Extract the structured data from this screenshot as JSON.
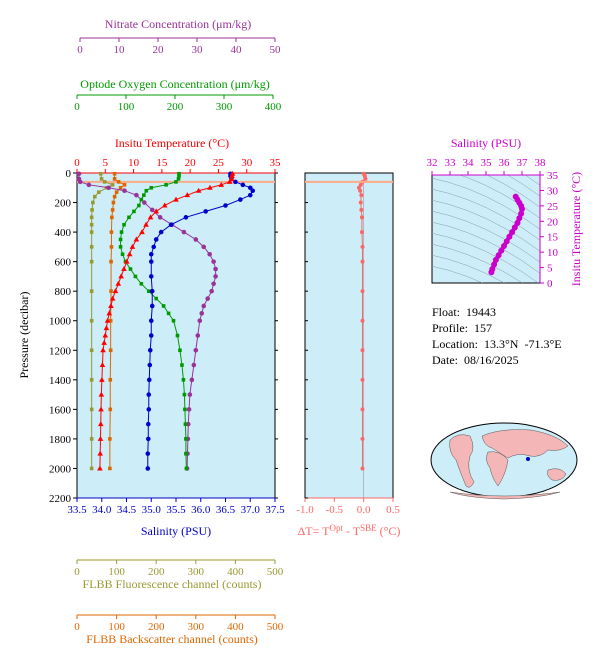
{
  "info": {
    "float_label": "Float:",
    "float_value": "19443",
    "profile_label": "Profile:",
    "profile_value": "157",
    "location_label": "Location:",
    "location_value": "13.3°N  -71.3°E",
    "date_label": "Date:",
    "date_value": "08/16/2025"
  },
  "colors": {
    "temperature": "#ff0000",
    "salinity": "#0000cc",
    "oxygen": "#009900",
    "nitrate": "#993399",
    "fluorescence": "#999933",
    "backscatter": "#dd6600",
    "delta_t": "#ff6666",
    "ts_salinity": "#cc00cc",
    "panel_bg": "#cdeef8"
  },
  "chart_data": [
    {
      "type": "line",
      "ylabel": "Pressure (decibar)",
      "ylim": [
        2200,
        0
      ],
      "yticks": [
        0,
        200,
        400,
        600,
        800,
        1000,
        1200,
        1400,
        1600,
        1800,
        2000,
        2200
      ],
      "axes": {
        "nitrate": {
          "label": "Nitrate Concentration (μm/kg)",
          "lim": [
            0,
            50
          ],
          "ticks": [
            0,
            10,
            20,
            30,
            40,
            50
          ]
        },
        "oxygen": {
          "label": "Optode Oxygen Concentration (μm/kg)",
          "lim": [
            0,
            400
          ],
          "ticks": [
            0,
            100,
            200,
            300,
            400
          ]
        },
        "temperature": {
          "label": "Insitu Temperature (°C)",
          "lim": [
            0,
            35
          ],
          "ticks": [
            0,
            5,
            10,
            15,
            20,
            25,
            30,
            35
          ]
        },
        "salinity": {
          "label": "Salinity (PSU)",
          "lim": [
            33.5,
            37.5
          ],
          "ticks": [
            "33.5",
            "34.0",
            "34.5",
            "35.0",
            "35.5",
            "36.0",
            "36.5",
            "37.0",
            "37.5"
          ]
        },
        "fluorescence": {
          "label": "FLBB Fluorescence channel (counts)",
          "lim": [
            0,
            500
          ],
          "ticks": [
            0,
            100,
            200,
            300,
            400,
            500
          ]
        },
        "backscatter": {
          "label": "FLBB Backscatter channel (counts)",
          "lim": [
            0,
            500
          ],
          "ticks": [
            0,
            100,
            200,
            300,
            400,
            500
          ]
        }
      },
      "mixed_layer_pressure": 60,
      "series": {
        "temperature": [
          [
            27.5,
            5
          ],
          [
            27.4,
            20
          ],
          [
            27.3,
            40
          ],
          [
            27.0,
            60
          ],
          [
            25.5,
            80
          ],
          [
            23.5,
            100
          ],
          [
            21.5,
            120
          ],
          [
            19.5,
            150
          ],
          [
            17.5,
            180
          ],
          [
            15.5,
            220
          ],
          [
            14,
            260
          ],
          [
            13,
            300
          ],
          [
            12.2,
            350
          ],
          [
            11.5,
            400
          ],
          [
            10.5,
            450
          ],
          [
            9.8,
            500
          ],
          [
            9.3,
            550
          ],
          [
            8.8,
            600
          ],
          [
            8.3,
            650
          ],
          [
            7.8,
            700
          ],
          [
            7.3,
            750
          ],
          [
            6.8,
            800
          ],
          [
            6.3,
            850
          ],
          [
            6,
            900
          ],
          [
            5.7,
            950
          ],
          [
            5.4,
            1000
          ],
          [
            5.2,
            1050
          ],
          [
            5,
            1100
          ],
          [
            4.8,
            1150
          ],
          [
            4.6,
            1200
          ],
          [
            4.5,
            1300
          ],
          [
            4.4,
            1400
          ],
          [
            4.3,
            1500
          ],
          [
            4.25,
            1600
          ],
          [
            4.2,
            1700
          ],
          [
            4.15,
            1800
          ],
          [
            4.1,
            1900
          ],
          [
            4.05,
            2000
          ]
        ],
        "salinity": [
          [
            36.6,
            5
          ],
          [
            36.6,
            20
          ],
          [
            36.62,
            40
          ],
          [
            36.7,
            60
          ],
          [
            36.85,
            80
          ],
          [
            37.0,
            100
          ],
          [
            37.05,
            120
          ],
          [
            37.0,
            150
          ],
          [
            36.8,
            180
          ],
          [
            36.5,
            220
          ],
          [
            36.1,
            260
          ],
          [
            35.7,
            300
          ],
          [
            35.4,
            350
          ],
          [
            35.2,
            400
          ],
          [
            35.1,
            450
          ],
          [
            35.05,
            500
          ],
          [
            35.0,
            550
          ],
          [
            35.0,
            600
          ],
          [
            35.0,
            700
          ],
          [
            35.02,
            800
          ],
          [
            35.02,
            900
          ],
          [
            35.0,
            1000
          ],
          [
            35.0,
            1100
          ],
          [
            34.98,
            1200
          ],
          [
            34.97,
            1300
          ],
          [
            34.96,
            1400
          ],
          [
            34.95,
            1500
          ],
          [
            34.95,
            1600
          ],
          [
            34.94,
            1700
          ],
          [
            34.94,
            1800
          ],
          [
            34.93,
            1900
          ],
          [
            34.93,
            2000
          ]
        ],
        "oxygen": [
          [
            206,
            5
          ],
          [
            206,
            20
          ],
          [
            205,
            40
          ],
          [
            200,
            60
          ],
          [
            180,
            80
          ],
          [
            150,
            100
          ],
          [
            140,
            120
          ],
          [
            135,
            150
          ],
          [
            130,
            180
          ],
          [
            125,
            220
          ],
          [
            115,
            260
          ],
          [
            105,
            300
          ],
          [
            95,
            350
          ],
          [
            90,
            400
          ],
          [
            88,
            450
          ],
          [
            88,
            500
          ],
          [
            92,
            550
          ],
          [
            98,
            600
          ],
          [
            108,
            650
          ],
          [
            118,
            700
          ],
          [
            130,
            750
          ],
          [
            145,
            800
          ],
          [
            160,
            850
          ],
          [
            175,
            900
          ],
          [
            185,
            950
          ],
          [
            195,
            1000
          ],
          [
            203,
            1100
          ],
          [
            208,
            1200
          ],
          [
            212,
            1300
          ],
          [
            215,
            1400
          ],
          [
            217,
            1500
          ],
          [
            218,
            1600
          ],
          [
            219,
            1700
          ],
          [
            220,
            1800
          ],
          [
            220,
            1900
          ],
          [
            221,
            2000
          ]
        ],
        "nitrate": [
          [
            0.5,
            5
          ],
          [
            0.5,
            40
          ],
          [
            0.8,
            60
          ],
          [
            3,
            80
          ],
          [
            8,
            100
          ],
          [
            12,
            120
          ],
          [
            15,
            150
          ],
          [
            17,
            200
          ],
          [
            19,
            250
          ],
          [
            21,
            300
          ],
          [
            24,
            350
          ],
          [
            27,
            400
          ],
          [
            30,
            450
          ],
          [
            32,
            500
          ],
          [
            33.5,
            550
          ],
          [
            34.5,
            600
          ],
          [
            35,
            650
          ],
          [
            35,
            700
          ],
          [
            34.5,
            750
          ],
          [
            34,
            800
          ],
          [
            33,
            850
          ],
          [
            32,
            900
          ],
          [
            31.5,
            950
          ],
          [
            31,
            1000
          ],
          [
            30.5,
            1100
          ],
          [
            30,
            1200
          ],
          [
            29.5,
            1300
          ],
          [
            29,
            1400
          ],
          [
            28.5,
            1500
          ],
          [
            28.3,
            1600
          ],
          [
            28.1,
            1700
          ],
          [
            28,
            1800
          ],
          [
            27.9,
            1900
          ],
          [
            27.8,
            2000
          ]
        ],
        "fluorescence": [
          [
            60,
            5
          ],
          [
            62,
            40
          ],
          [
            70,
            60
          ],
          [
            90,
            80
          ],
          [
            75,
            100
          ],
          [
            55,
            130
          ],
          [
            45,
            160
          ],
          [
            40,
            200
          ],
          [
            38,
            250
          ],
          [
            37,
            300
          ],
          [
            37,
            350
          ],
          [
            37,
            400
          ],
          [
            37,
            500
          ],
          [
            37,
            600
          ],
          [
            37,
            800
          ],
          [
            37,
            1000
          ],
          [
            37,
            1200
          ],
          [
            37,
            1400
          ],
          [
            37,
            1600
          ],
          [
            37,
            1800
          ],
          [
            37,
            2000
          ]
        ],
        "backscatter": [
          [
            95,
            5
          ],
          [
            95,
            40
          ],
          [
            105,
            60
          ],
          [
            120,
            80
          ],
          [
            110,
            100
          ],
          [
            100,
            130
          ],
          [
            95,
            160
          ],
          [
            92,
            200
          ],
          [
            90,
            250
          ],
          [
            88,
            300
          ],
          [
            87,
            400
          ],
          [
            87,
            500
          ],
          [
            86,
            600
          ],
          [
            86,
            800
          ],
          [
            85,
            1000
          ],
          [
            85,
            1200
          ],
          [
            84,
            1400
          ],
          [
            84,
            1600
          ],
          [
            83,
            1800
          ],
          [
            83,
            2000
          ]
        ]
      }
    },
    {
      "type": "line",
      "xlabel": "ΔT= T^Opt - T^SBE (°C)",
      "xlim": [
        -1.0,
        0.5
      ],
      "xticks": [
        "-1.0",
        "-0.5",
        "0.0",
        "0.5"
      ],
      "ylim": [
        2200,
        0
      ],
      "series": [
        {
          "values": [
            [
              0.0,
              5
            ],
            [
              0.02,
              20
            ],
            [
              0.03,
              40
            ],
            [
              -0.02,
              60
            ],
            [
              -0.05,
              80
            ],
            [
              -0.08,
              100
            ],
            [
              -0.06,
              120
            ],
            [
              -0.04,
              150
            ],
            [
              -0.05,
              200
            ],
            [
              -0.04,
              250
            ],
            [
              -0.03,
              300
            ],
            [
              -0.03,
              400
            ],
            [
              -0.02,
              500
            ],
            [
              -0.02,
              600
            ],
            [
              -0.02,
              800
            ],
            [
              -0.02,
              1000
            ],
            [
              -0.02,
              1200
            ],
            [
              -0.02,
              1400
            ],
            [
              -0.02,
              1600
            ],
            [
              -0.02,
              1800
            ],
            [
              -0.02,
              2000
            ]
          ]
        }
      ]
    },
    {
      "type": "scatter",
      "xlabel": "Salinity (PSU)",
      "ylabel": "Insitu Temperature (°C)",
      "xlim": [
        32,
        38
      ],
      "ylim": [
        0,
        35
      ],
      "xticks": [
        32,
        33,
        34,
        35,
        36,
        37,
        38
      ],
      "yticks": [
        0,
        5,
        10,
        15,
        20,
        25,
        30,
        35
      ],
      "values": [
        [
          35.3,
          3.5
        ],
        [
          35.35,
          4.5
        ],
        [
          35.45,
          6
        ],
        [
          35.55,
          7.5
        ],
        [
          35.7,
          9
        ],
        [
          35.85,
          10.5
        ],
        [
          36.0,
          12
        ],
        [
          36.15,
          13.5
        ],
        [
          36.3,
          15
        ],
        [
          36.45,
          16.5
        ],
        [
          36.6,
          18
        ],
        [
          36.75,
          19.5
        ],
        [
          36.85,
          21
        ],
        [
          36.95,
          22.5
        ],
        [
          37.0,
          24
        ],
        [
          36.95,
          25
        ],
        [
          36.85,
          26
        ],
        [
          36.75,
          27
        ],
        [
          36.65,
          28
        ]
      ]
    }
  ]
}
